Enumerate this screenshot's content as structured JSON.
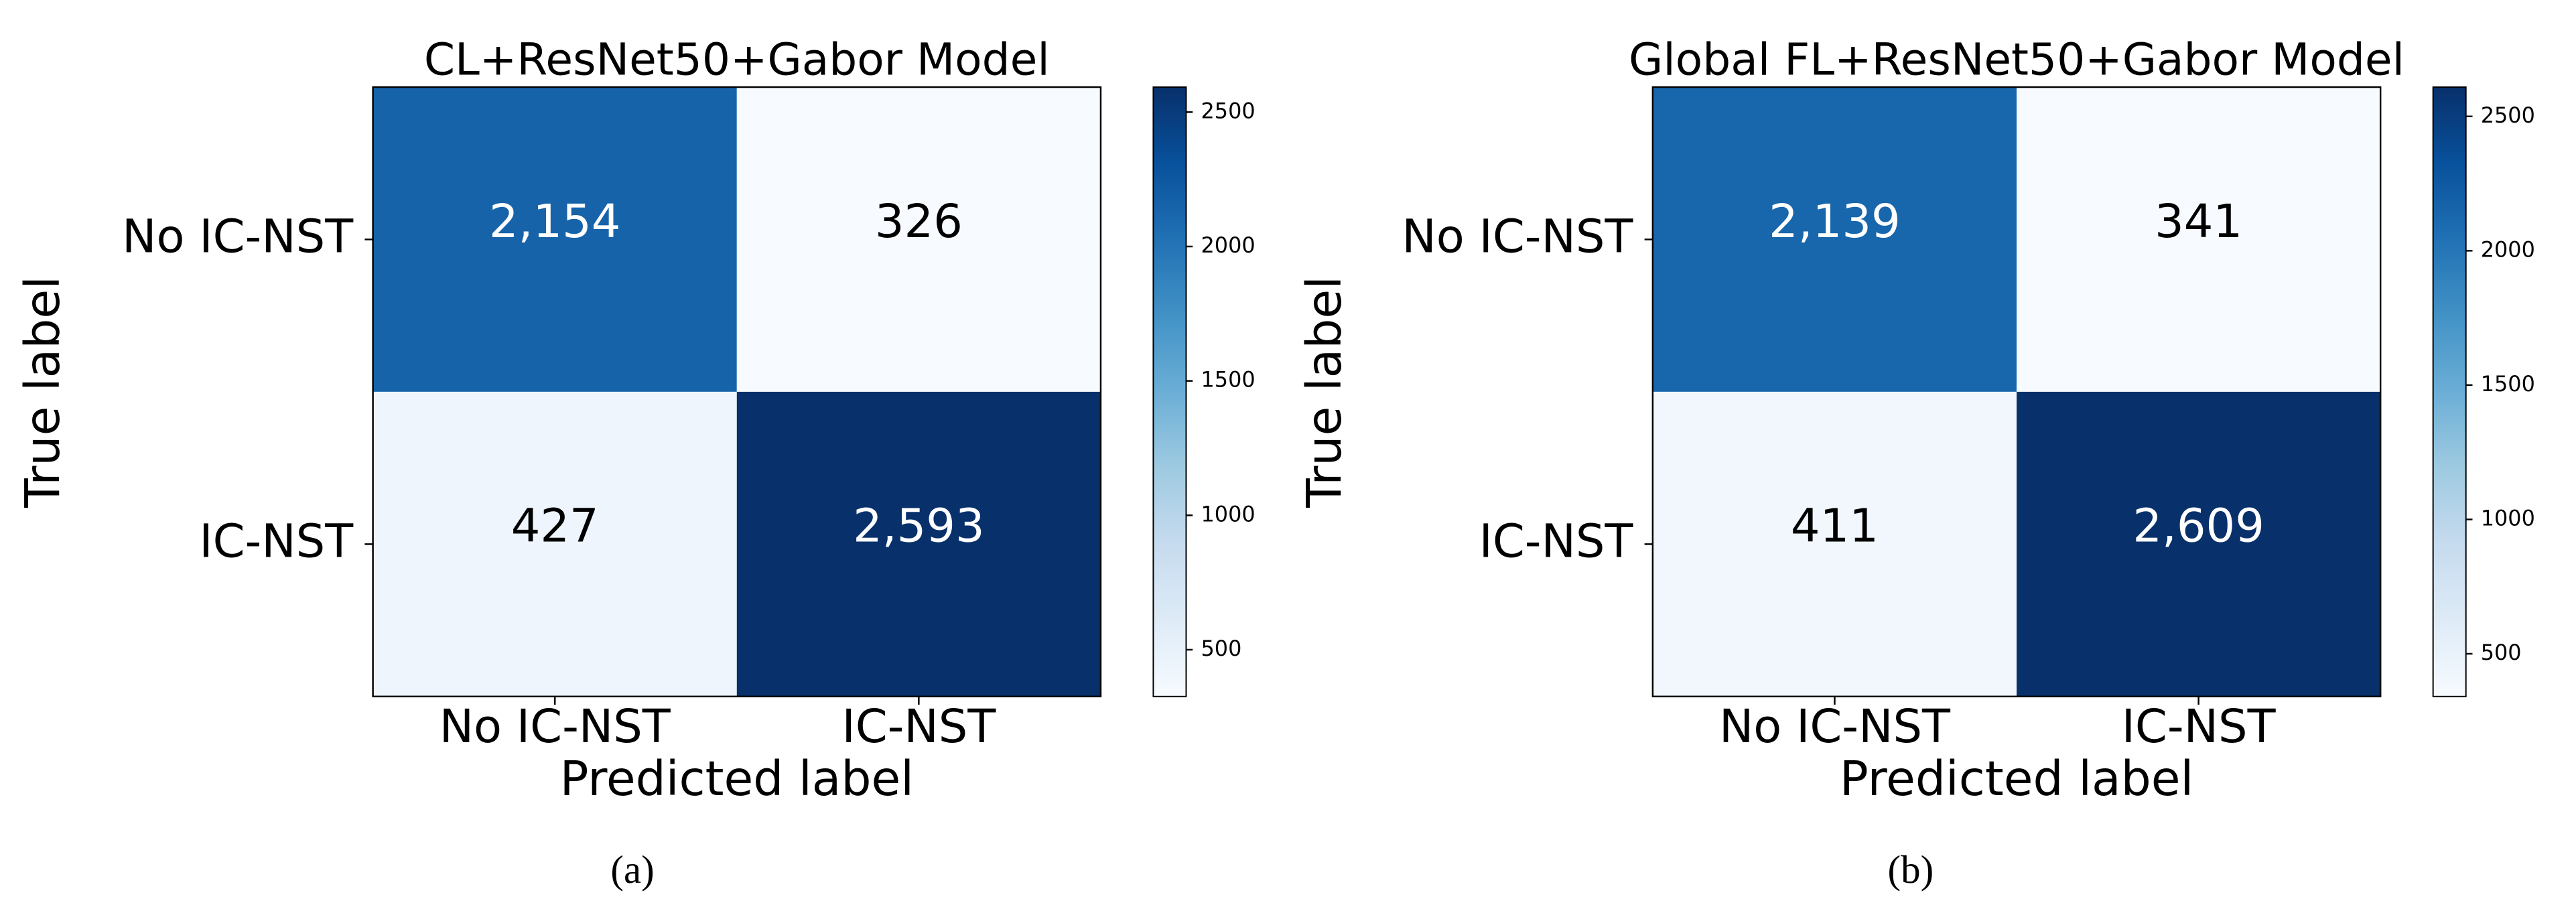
{
  "chart_data": [
    {
      "type": "heatmap",
      "title": "CL+ResNet50+Gabor Model",
      "x_categories": [
        "No IC-NST",
        "IC-NST"
      ],
      "y_categories": [
        "No IC-NST",
        "IC-NST"
      ],
      "values": [
        [
          2154,
          326
        ],
        [
          427,
          2593
        ]
      ],
      "value_labels": [
        [
          "2,154",
          "326"
        ],
        [
          "427",
          "2,593"
        ]
      ],
      "xlabel": "Predicted label",
      "ylabel": "True label",
      "colormap": "Blues",
      "clim": [
        326,
        2593
      ],
      "cticks": [
        500,
        1000,
        1500,
        2000,
        2500
      ],
      "caption": "(a)"
    },
    {
      "type": "heatmap",
      "title": "Global FL+ResNet50+Gabor Model",
      "x_categories": [
        "No IC-NST",
        "IC-NST"
      ],
      "y_categories": [
        "No IC-NST",
        "IC-NST"
      ],
      "values": [
        [
          2139,
          341
        ],
        [
          411,
          2609
        ]
      ],
      "value_labels": [
        [
          "2,139",
          "341"
        ],
        [
          "411",
          "2,609"
        ]
      ],
      "xlabel": "Predicted label",
      "ylabel": "True label",
      "colormap": "Blues",
      "clim": [
        341,
        2609
      ],
      "cticks": [
        500,
        1000,
        1500,
        2000,
        2500
      ],
      "caption": "(b)"
    }
  ]
}
